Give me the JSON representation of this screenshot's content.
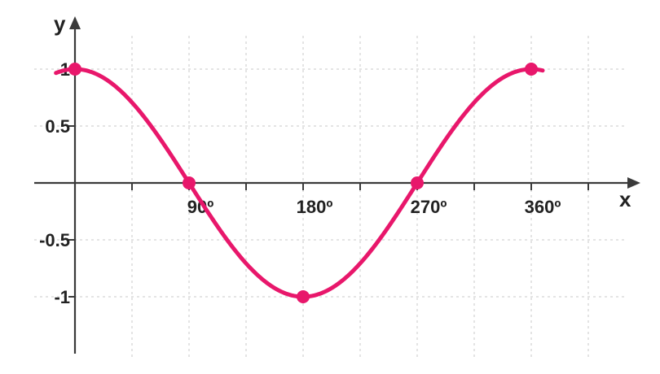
{
  "chart_data": {
    "type": "line",
    "xlabel": "x",
    "ylabel": "y",
    "xlim": [
      -40,
      410
    ],
    "ylim": [
      -1.5,
      1.5
    ],
    "grid": true,
    "x_ticks": [
      {
        "value": 90,
        "label": "90º"
      },
      {
        "value": 180,
        "label": "180º"
      },
      {
        "value": 270,
        "label": "270º"
      },
      {
        "value": 360,
        "label": "360º"
      }
    ],
    "x_minor_ticks": [
      45,
      135,
      225,
      315,
      405
    ],
    "y_ticks": [
      {
        "value": 1,
        "label": "1"
      },
      {
        "value": 0.5,
        "label": "0.5"
      },
      {
        "value": -0.5,
        "label": "-0.5"
      },
      {
        "value": -1,
        "label": "-1"
      }
    ],
    "series": [
      {
        "color": "#e8176b",
        "function": "cos",
        "x_start": -15,
        "x_end": 370,
        "highlighted_points": [
          {
            "x": 0,
            "y": 1
          },
          {
            "x": 90,
            "y": 0
          },
          {
            "x": 180,
            "y": -1
          },
          {
            "x": 270,
            "y": 0
          },
          {
            "x": 360,
            "y": 1
          }
        ]
      }
    ]
  }
}
